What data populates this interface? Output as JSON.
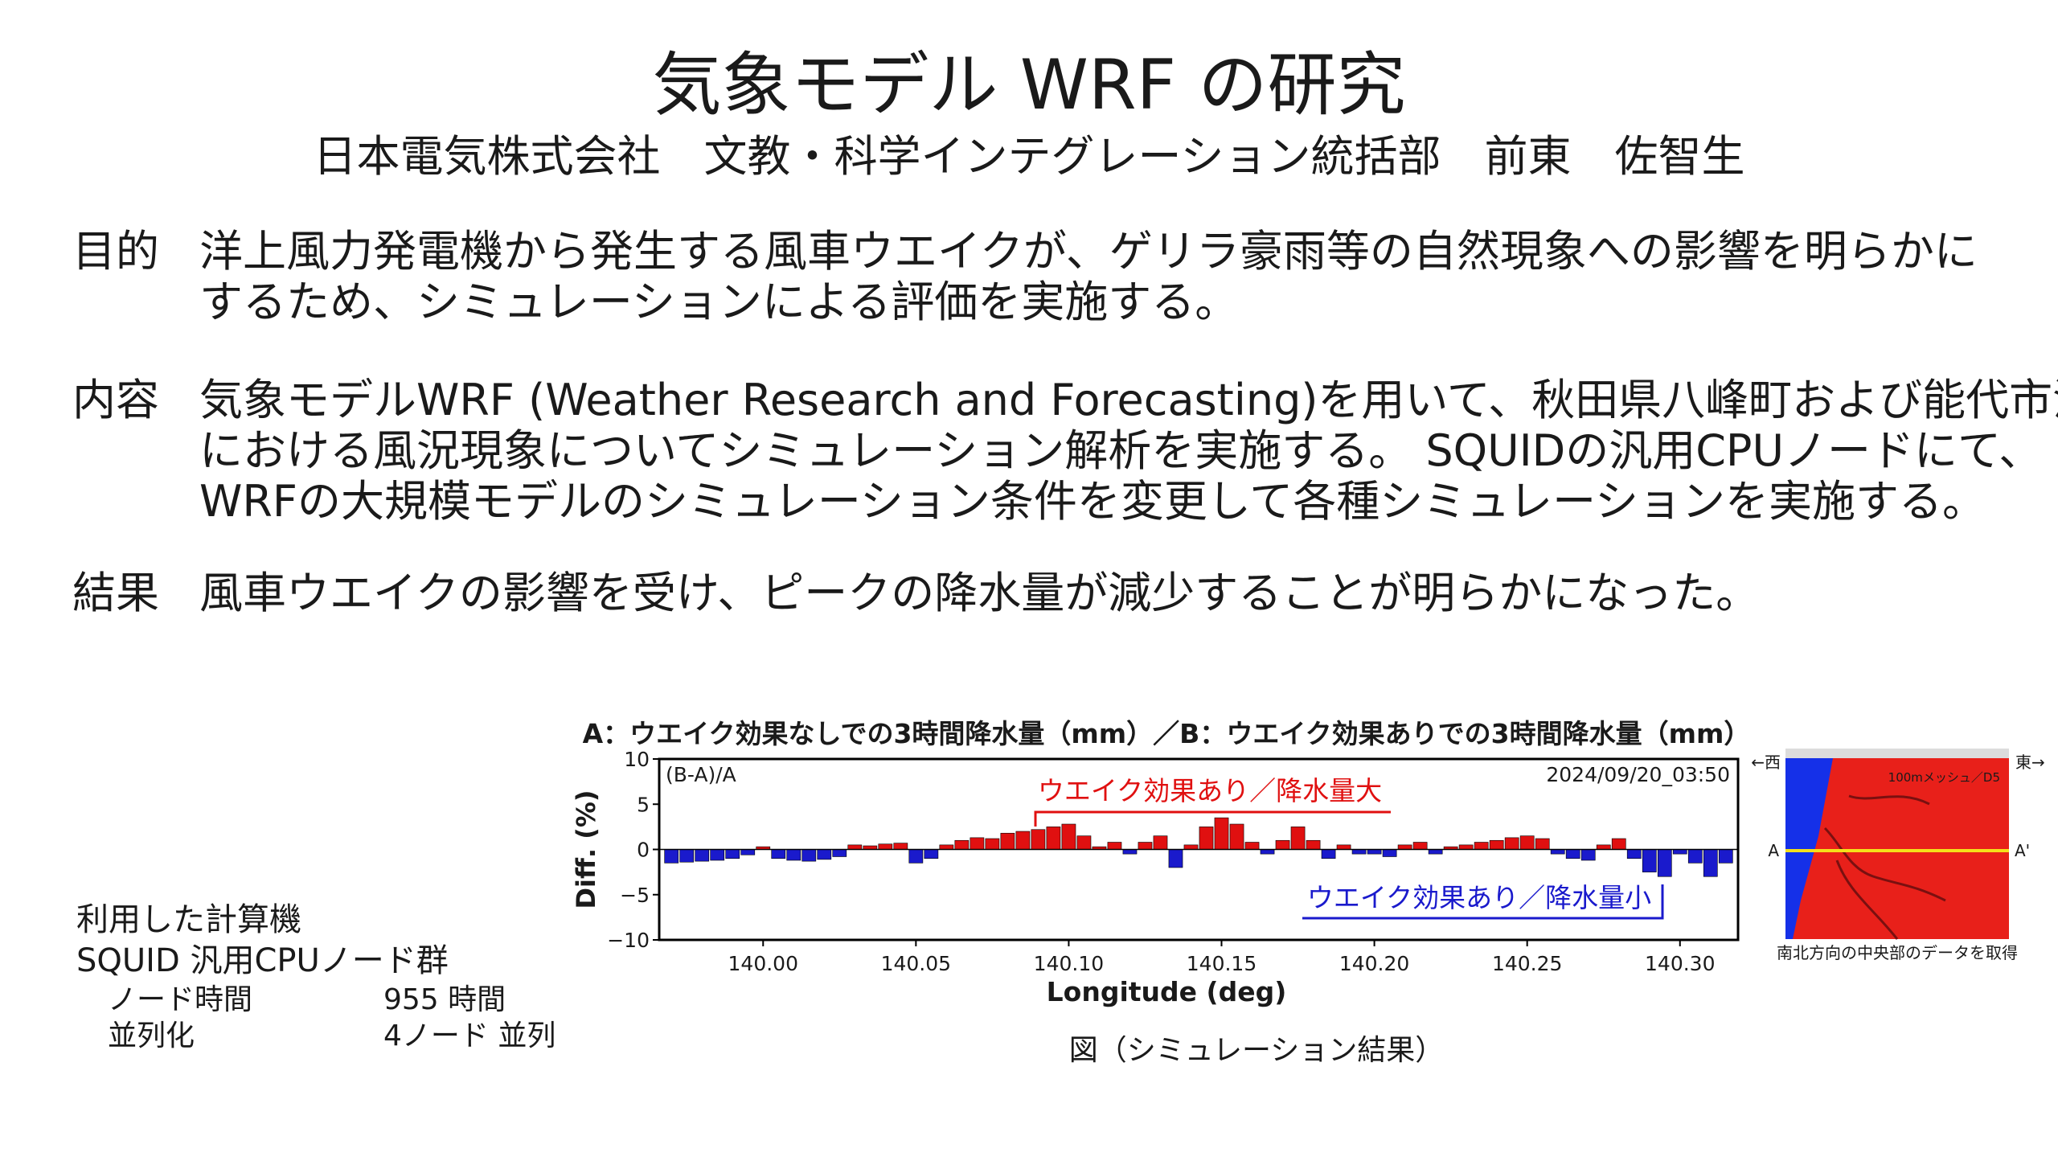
{
  "header": {
    "title": "気象モデル WRF の研究",
    "subtitle": "日本電気株式会社　文教・科学インテグレーション統括部　前東　佐智生"
  },
  "sections": [
    {
      "label": "目的",
      "lines": [
        "洋上風力発電機から発生する風車ウエイクが、ゲリラ豪雨等の自然現象への影響を明らかに",
        "するため、シミュレーションによる評価を実施する。"
      ]
    },
    {
      "label": "内容",
      "lines": [
        "気象モデルWRF (Weather Research and Forecasting)を用いて、秋田県八峰町および能代市沖",
        "における風況現象についてシミュレーション解析を実施する。 SQUIDの汎用CPUノードにて、",
        "WRFの大規模モデルのシミュレーション条件を変更して各種シミュレーションを実施する。"
      ]
    },
    {
      "label": "結果",
      "lines": [
        "風車ウエイクの影響を受け、ピークの降水量が減少することが明らかになった。"
      ]
    }
  ],
  "computer": {
    "heading": "利用した計算機",
    "system": "SQUID 汎用CPUノード群",
    "rows": [
      [
        "ノード時間",
        "955 時間"
      ],
      [
        "並列化",
        "4ノード 並列"
      ]
    ]
  },
  "chart_data": {
    "type": "bar",
    "title": "A：ウエイク効果なしでの3時間降水量（mm）／B：ウエイク効果ありでの3時間降水量（mm）",
    "x_label": "Longitude (deg)",
    "y_label": "Diff. (%)",
    "annotations": [
      "(B-A)/A",
      "2024/09/20_03:50",
      "ウエイク効果あり／降水量大",
      "ウエイク効果あり／降水量小"
    ],
    "positive_color": "#e01010",
    "negative_color": "#1a1acc",
    "x": [
      139.97,
      139.975,
      139.98,
      139.985,
      139.99,
      139.995,
      140.0,
      140.005,
      140.01,
      140.015,
      140.02,
      140.025,
      140.03,
      140.035,
      140.04,
      140.045,
      140.05,
      140.055,
      140.06,
      140.065,
      140.07,
      140.075,
      140.08,
      140.085,
      140.09,
      140.095,
      140.1,
      140.105,
      140.11,
      140.115,
      140.12,
      140.125,
      140.13,
      140.135,
      140.14,
      140.145,
      140.15,
      140.155,
      140.16,
      140.165,
      140.17,
      140.175,
      140.18,
      140.185,
      140.19,
      140.195,
      140.2,
      140.205,
      140.21,
      140.215,
      140.22,
      140.225,
      140.23,
      140.235,
      140.24,
      140.245,
      140.25,
      140.255,
      140.26,
      140.265,
      140.27,
      140.275,
      140.28,
      140.285,
      140.29,
      140.295,
      140.3,
      140.305,
      140.31,
      140.315
    ],
    "values": [
      -1.5,
      -1.4,
      -1.3,
      -1.2,
      -1.0,
      -0.6,
      0.3,
      -1.0,
      -1.2,
      -1.3,
      -1.1,
      -0.8,
      0.5,
      0.4,
      0.6,
      0.7,
      -1.5,
      -1.0,
      0.5,
      1.0,
      1.3,
      1.2,
      1.8,
      2.0,
      2.2,
      2.5,
      2.8,
      1.5,
      0.3,
      0.8,
      -0.5,
      0.8,
      1.5,
      -2.0,
      0.5,
      2.5,
      3.5,
      2.8,
      0.8,
      -0.5,
      1.0,
      2.5,
      1.0,
      -1.0,
      0.5,
      -0.5,
      -0.5,
      -0.8,
      0.5,
      0.8,
      -0.5,
      0.3,
      0.5,
      0.8,
      1.0,
      1.3,
      1.5,
      1.2,
      -0.5,
      -1.0,
      -1.2,
      0.5,
      1.2,
      -1.0,
      -2.5,
      -3.0,
      -0.5,
      -1.5,
      -3.0,
      -1.5
    ],
    "xlim": [
      139.966,
      140.319
    ],
    "ylim": [
      -10,
      10
    ],
    "xticks": [
      {
        "value": 140,
        "label": "140.00"
      },
      140.05,
      {
        "value": 140.1,
        "label": "140.10"
      },
      140.15,
      {
        "value": 140.2,
        "label": "140.20"
      },
      140.25,
      {
        "value": 140.3,
        "label": "140.30"
      }
    ],
    "yticks": [
      {
        "value": -10,
        "label": "−10"
      },
      {
        "value": -5,
        "label": "−5"
      },
      0,
      5,
      10
    ]
  },
  "map": {
    "west": "←西",
    "east": "東→",
    "a": "A",
    "a_prime": "A'",
    "mesh": "100mメッシュ／D5",
    "note": "南北方向の中央部のデータを取得"
  },
  "caption": "図（シミュレーション結果）"
}
